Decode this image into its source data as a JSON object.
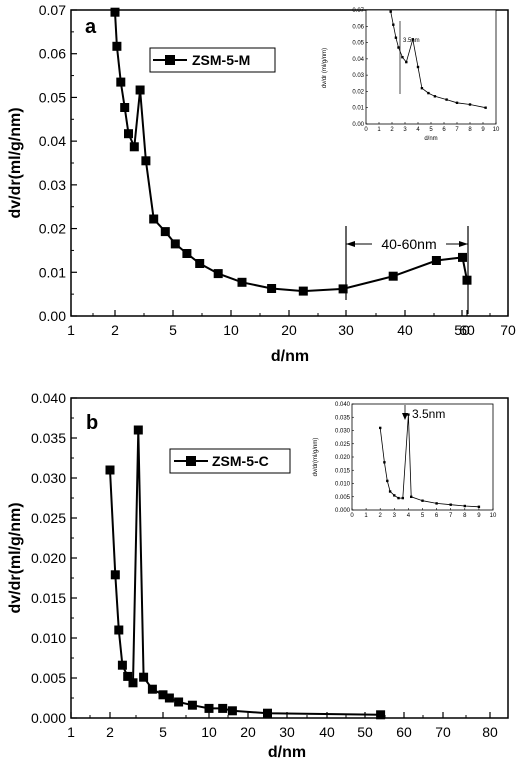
{
  "chart_data": [
    {
      "type": "line",
      "panel_label": "a",
      "xlabel": "d/nm",
      "ylabel": "dv/dr(ml/g/nm)",
      "x_tick_labels": [
        "1",
        "2",
        "5",
        "10",
        "20",
        "30",
        "40",
        "50",
        "60",
        "70"
      ],
      "y_tick_labels": [
        "0.00",
        "0.01",
        "0.02",
        "0.03",
        "0.04",
        "0.05",
        "0.06",
        "0.07"
      ],
      "series": [
        {
          "name": "ZSM-5-M",
          "marker": "square",
          "points": [
            [
              2.0,
              0.0695
            ],
            [
              2.1,
              0.0617
            ],
            [
              2.3,
              0.0535
            ],
            [
              2.5,
              0.0477
            ],
            [
              2.7,
              0.0417
            ],
            [
              3.0,
              0.0387
            ],
            [
              3.3,
              0.0517
            ],
            [
              3.6,
              0.0355
            ],
            [
              4.0,
              0.0222
            ],
            [
              4.6,
              0.0193
            ],
            [
              5.2,
              0.0165
            ],
            [
              6.2,
              0.0143
            ],
            [
              7.3,
              0.012
            ],
            [
              8.9,
              0.0097
            ],
            [
              11.9,
              0.0077
            ],
            [
              17.0,
              0.0063
            ],
            [
              22.5,
              0.0057
            ],
            [
              29.5,
              0.0062
            ],
            [
              38.0,
              0.0091
            ],
            [
              45.5,
              0.0127
            ],
            [
              51.0,
              0.0134
            ],
            [
              60.0,
              0.0082
            ]
          ]
        }
      ],
      "annotations": [
        {
          "text": "40-60nm"
        }
      ],
      "inset": {
        "xlabel": "d/nm",
        "ylabel": "dv/dr (ml/g/nm)",
        "annotation": "3.5nm",
        "x_tick_labels": [
          "0",
          "1",
          "2",
          "3",
          "4",
          "5",
          "6",
          "7",
          "8",
          "9",
          "10"
        ],
        "y_tick_labels": [
          "0.00",
          "0.01",
          "0.02",
          "0.03",
          "0.04",
          "0.05",
          "0.06",
          "0.07"
        ],
        "points": [
          [
            1.9,
            0.069
          ],
          [
            2.1,
            0.061
          ],
          [
            2.3,
            0.053
          ],
          [
            2.5,
            0.047
          ],
          [
            2.8,
            0.041
          ],
          [
            3.1,
            0.038
          ],
          [
            3.6,
            0.052
          ],
          [
            4.0,
            0.035
          ],
          [
            4.3,
            0.022
          ],
          [
            4.8,
            0.019
          ],
          [
            5.3,
            0.017
          ],
          [
            6.2,
            0.015
          ],
          [
            7.0,
            0.013
          ],
          [
            8.0,
            0.012
          ],
          [
            9.2,
            0.01
          ]
        ]
      }
    },
    {
      "type": "line",
      "panel_label": "b",
      "xlabel": "d/nm",
      "ylabel": "dv/dr(ml/g/nm)",
      "x_tick_labels": [
        "1",
        "2",
        "5",
        "10",
        "20",
        "30",
        "40",
        "50",
        "60",
        "70",
        "80"
      ],
      "y_tick_labels": [
        "0.000",
        "0.005",
        "0.010",
        "0.015",
        "0.020",
        "0.025",
        "0.030",
        "0.035",
        "0.040"
      ],
      "series": [
        {
          "name": "ZSM-5-C",
          "marker": "square",
          "points": [
            [
              2.0,
              0.031
            ],
            [
              2.3,
              0.0179
            ],
            [
              2.5,
              0.011
            ],
            [
              2.7,
              0.0066
            ],
            [
              3.0,
              0.0052
            ],
            [
              3.3,
              0.0044
            ],
            [
              3.6,
              0.036
            ],
            [
              3.9,
              0.0051
            ],
            [
              4.4,
              0.0036
            ],
            [
              5.0,
              0.0029
            ],
            [
              5.7,
              0.0025
            ],
            [
              6.7,
              0.002
            ],
            [
              8.2,
              0.0016
            ],
            [
              10.0,
              0.0012
            ],
            [
              13.5,
              0.0012
            ],
            [
              16.0,
              0.0009
            ],
            [
              25.0,
              0.0006
            ],
            [
              54.0,
              0.0004
            ]
          ]
        }
      ],
      "inset": {
        "ylabel": "dv/dr(ml/g/nm)",
        "annotation": "3.5nm",
        "x_tick_labels": [
          "0",
          "1",
          "2",
          "3",
          "4",
          "5",
          "6",
          "7",
          "8",
          "9",
          "10"
        ],
        "y_tick_labels": [
          "0.000",
          "0.005",
          "0.010",
          "0.015",
          "0.020",
          "0.025",
          "0.030",
          "0.035",
          "0.040"
        ],
        "points": [
          [
            2.0,
            0.031
          ],
          [
            2.3,
            0.018
          ],
          [
            2.5,
            0.011
          ],
          [
            2.7,
            0.007
          ],
          [
            3.0,
            0.0055
          ],
          [
            3.3,
            0.0045
          ],
          [
            3.6,
            0.0045
          ],
          [
            4.0,
            0.036
          ],
          [
            4.2,
            0.005
          ],
          [
            5.0,
            0.0035
          ],
          [
            6.0,
            0.0025
          ],
          [
            7.0,
            0.002
          ],
          [
            8.0,
            0.0015
          ],
          [
            9.0,
            0.0012
          ]
        ]
      }
    }
  ]
}
